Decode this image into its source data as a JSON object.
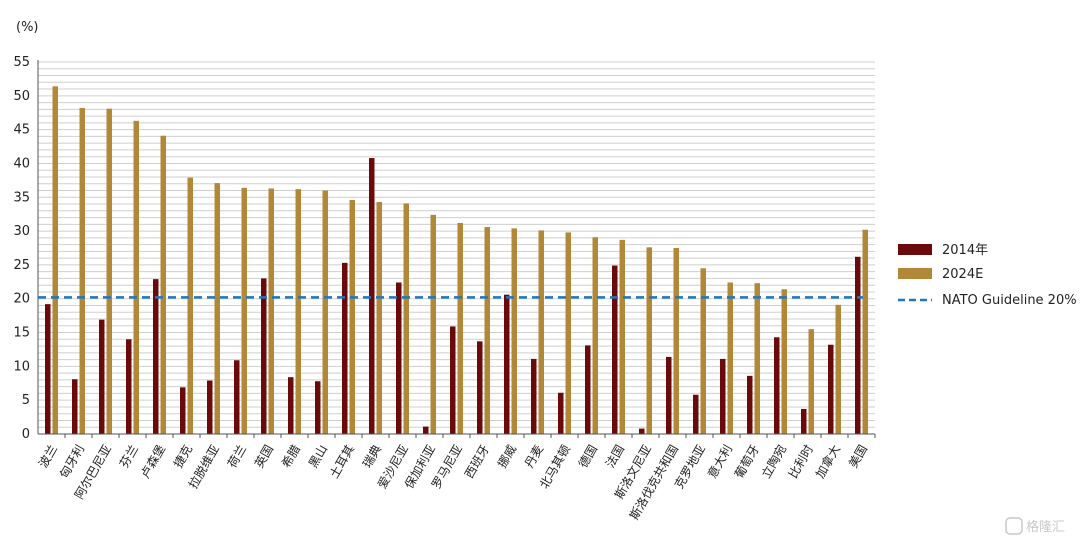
{
  "chart_data": {
    "type": "bar",
    "unit_label": "(%)",
    "ylim": [
      0,
      55
    ],
    "yticks": [
      0,
      5,
      10,
      15,
      20,
      25,
      30,
      35,
      40,
      45,
      50,
      55
    ],
    "grid": true,
    "legend_position": "right",
    "categories": [
      "波兰",
      "匈牙利",
      "阿尔巴尼亚",
      "芬兰",
      "卢森堡",
      "捷克",
      "拉脱维亚",
      "荷兰",
      "英国",
      "希腊",
      "黑山",
      "土耳其",
      "瑞典",
      "爱沙尼亚",
      "保加利亚",
      "罗马尼亚",
      "西班牙",
      "挪威",
      "丹麦",
      "北马其顿",
      "德国",
      "法国",
      "斯洛文尼亚",
      "斯洛伐克共和国",
      "克罗地亚",
      "意大利",
      "葡萄牙",
      "立陶宛",
      "比利时",
      "加拿大",
      "美国"
    ],
    "series": [
      {
        "name": "2014年",
        "color": "#6b0a0a",
        "values": [
          19.2,
          8.1,
          16.9,
          14.0,
          22.9,
          6.9,
          7.9,
          10.9,
          23.0,
          8.4,
          7.8,
          25.3,
          40.8,
          22.4,
          1.1,
          15.9,
          13.7,
          20.6,
          11.1,
          6.1,
          13.1,
          24.9,
          0.8,
          11.4,
          5.8,
          11.1,
          8.6,
          14.3,
          3.7,
          13.2,
          26.2
        ]
      },
      {
        "name": "2024E",
        "color": "#b08838",
        "values": [
          51.4,
          48.2,
          48.1,
          46.3,
          44.1,
          37.9,
          37.1,
          36.4,
          36.3,
          36.2,
          36.0,
          34.6,
          34.3,
          34.1,
          32.4,
          31.2,
          30.6,
          30.4,
          30.1,
          29.8,
          29.1,
          28.7,
          27.6,
          27.5,
          24.5,
          22.4,
          22.3,
          21.4,
          15.5,
          19.1,
          30.2
        ]
      }
    ],
    "reference_line": {
      "label": "NATO Guideline 20%",
      "value": 20.2,
      "color": "#1f77c4"
    }
  },
  "watermark": "格隆汇"
}
